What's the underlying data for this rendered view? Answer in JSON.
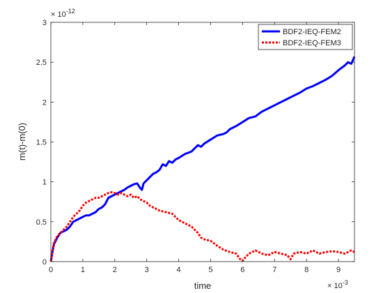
{
  "chart_data": {
    "type": "line",
    "xlabel": "time",
    "ylabel": "m(t)-m(0)",
    "x_multiplier_label": "× 10",
    "x_exponent": "-3",
    "y_multiplier_label": "× 10",
    "y_exponent": "-12",
    "xlim": [
      0,
      9.5
    ],
    "ylim": [
      0,
      3
    ],
    "xticks": [
      0,
      1,
      2,
      3,
      4,
      5,
      6,
      7,
      8,
      9
    ],
    "xtick_labels": [
      "0",
      "1",
      "2",
      "3",
      "4",
      "5",
      "6",
      "7",
      "8",
      "9"
    ],
    "yticks": [
      0,
      0.5,
      1,
      1.5,
      2,
      2.5,
      3
    ],
    "ytick_labels": [
      "0",
      "0.5",
      "1",
      "1.5",
      "2",
      "2.5",
      "3"
    ],
    "grid": false,
    "legend_position": "top-right",
    "series": [
      {
        "name": "BDF2-IEQ-FEM2",
        "color": "#0000ff",
        "style": "solid",
        "x": [
          0,
          0.05,
          0.1,
          0.2,
          0.3,
          0.4,
          0.5,
          0.6,
          0.7,
          0.8,
          0.9,
          1.0,
          1.1,
          1.2,
          1.3,
          1.4,
          1.5,
          1.6,
          1.7,
          1.8,
          1.9,
          2.0,
          2.1,
          2.2,
          2.3,
          2.4,
          2.5,
          2.6,
          2.7,
          2.8,
          2.85,
          2.9,
          3.0,
          3.1,
          3.2,
          3.3,
          3.4,
          3.5,
          3.6,
          3.7,
          3.8,
          3.9,
          4.0,
          4.2,
          4.4,
          4.5,
          4.6,
          4.7,
          4.8,
          5.0,
          5.2,
          5.4,
          5.5,
          5.6,
          5.8,
          6.0,
          6.2,
          6.4,
          6.5,
          6.6,
          6.8,
          7.0,
          7.2,
          7.4,
          7.6,
          7.8,
          8.0,
          8.2,
          8.4,
          8.6,
          8.8,
          9.0,
          9.2,
          9.3,
          9.4,
          9.5
        ],
        "y": [
          0,
          0.12,
          0.22,
          0.3,
          0.36,
          0.38,
          0.4,
          0.44,
          0.5,
          0.52,
          0.54,
          0.56,
          0.58,
          0.58,
          0.6,
          0.62,
          0.66,
          0.68,
          0.72,
          0.8,
          0.82,
          0.84,
          0.86,
          0.88,
          0.9,
          0.93,
          0.95,
          0.97,
          0.98,
          0.92,
          0.9,
          0.98,
          1.02,
          1.06,
          1.1,
          1.12,
          1.15,
          1.22,
          1.2,
          1.26,
          1.24,
          1.28,
          1.3,
          1.35,
          1.38,
          1.42,
          1.46,
          1.44,
          1.48,
          1.53,
          1.58,
          1.6,
          1.62,
          1.66,
          1.7,
          1.75,
          1.8,
          1.82,
          1.85,
          1.88,
          1.92,
          1.96,
          2.0,
          2.04,
          2.08,
          2.12,
          2.17,
          2.2,
          2.24,
          2.28,
          2.33,
          2.4,
          2.46,
          2.5,
          2.48,
          2.57
        ]
      },
      {
        "name": "BDF2-IEQ-FEM3",
        "color": "#ff0000",
        "style": "dotted",
        "x": [
          0,
          0.05,
          0.1,
          0.2,
          0.3,
          0.4,
          0.5,
          0.6,
          0.7,
          0.8,
          0.9,
          1.0,
          1.1,
          1.2,
          1.3,
          1.4,
          1.5,
          1.6,
          1.7,
          1.8,
          1.9,
          2.0,
          2.1,
          2.2,
          2.3,
          2.4,
          2.5,
          2.6,
          2.7,
          2.8,
          2.9,
          3.0,
          3.1,
          3.2,
          3.3,
          3.4,
          3.6,
          3.8,
          4.0,
          4.2,
          4.4,
          4.5,
          4.6,
          4.7,
          4.8,
          5.0,
          5.2,
          5.4,
          5.6,
          5.8,
          5.9,
          6.0,
          6.1,
          6.2,
          6.4,
          6.6,
          6.8,
          7.0,
          7.2,
          7.4,
          7.5,
          7.6,
          7.8,
          8.0,
          8.2,
          8.4,
          8.6,
          8.8,
          9.0,
          9.2,
          9.4,
          9.5
        ],
        "y": [
          0,
          0.14,
          0.24,
          0.32,
          0.36,
          0.4,
          0.44,
          0.5,
          0.56,
          0.6,
          0.64,
          0.7,
          0.74,
          0.76,
          0.78,
          0.8,
          0.8,
          0.82,
          0.84,
          0.86,
          0.87,
          0.86,
          0.84,
          0.86,
          0.84,
          0.82,
          0.84,
          0.8,
          0.82,
          0.78,
          0.76,
          0.74,
          0.7,
          0.68,
          0.66,
          0.64,
          0.62,
          0.6,
          0.52,
          0.48,
          0.44,
          0.4,
          0.36,
          0.3,
          0.28,
          0.26,
          0.2,
          0.15,
          0.12,
          0.1,
          0.04,
          0.01,
          0.06,
          0.1,
          0.14,
          0.1,
          0.08,
          0.12,
          0.1,
          0.08,
          0.03,
          0.1,
          0.12,
          0.1,
          0.14,
          0.1,
          0.12,
          0.13,
          0.12,
          0.1,
          0.14,
          0.12
        ]
      }
    ]
  }
}
